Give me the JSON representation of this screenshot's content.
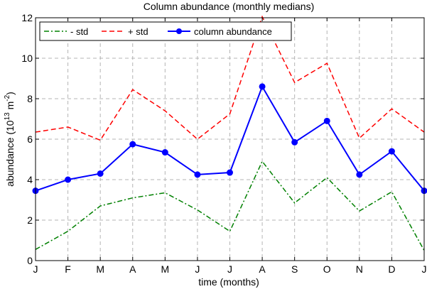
{
  "chart_data": {
    "type": "line",
    "title": "Column abundance (monthly medians)",
    "xlabel": "time (months)",
    "ylabel": {
      "prefix": "abundance (10",
      "sup1": "13",
      "middle": " m",
      "sup2": "-2",
      "suffix": ")"
    },
    "categories": [
      "J",
      "F",
      "M",
      "A",
      "M",
      "J",
      "J",
      "A",
      "S",
      "O",
      "N",
      "D",
      "J"
    ],
    "ylim": [
      0,
      12
    ],
    "yticks": [
      0,
      2,
      4,
      6,
      8,
      10,
      12
    ],
    "grid": true,
    "legend_position": "top-left",
    "series": [
      {
        "name": "- std",
        "color": "#008000",
        "dash": "dash-dot",
        "marker": "none",
        "values": [
          0.55,
          1.45,
          2.7,
          3.1,
          3.35,
          2.5,
          1.45,
          4.9,
          2.85,
          4.1,
          2.45,
          3.4,
          0.5
        ]
      },
      {
        "name": "+ std",
        "color": "#ff0000",
        "dash": "dashed",
        "marker": "none",
        "values": [
          6.35,
          6.6,
          5.95,
          8.45,
          7.4,
          6.0,
          7.25,
          12.05,
          8.8,
          9.75,
          6.05,
          7.5,
          6.35
        ]
      },
      {
        "name": "column abundance",
        "color": "#0000ff",
        "dash": "solid",
        "marker": "circle",
        "values": [
          3.45,
          4.0,
          4.3,
          5.75,
          5.35,
          4.25,
          4.35,
          8.6,
          5.85,
          6.9,
          4.25,
          5.4,
          3.45
        ]
      }
    ]
  }
}
